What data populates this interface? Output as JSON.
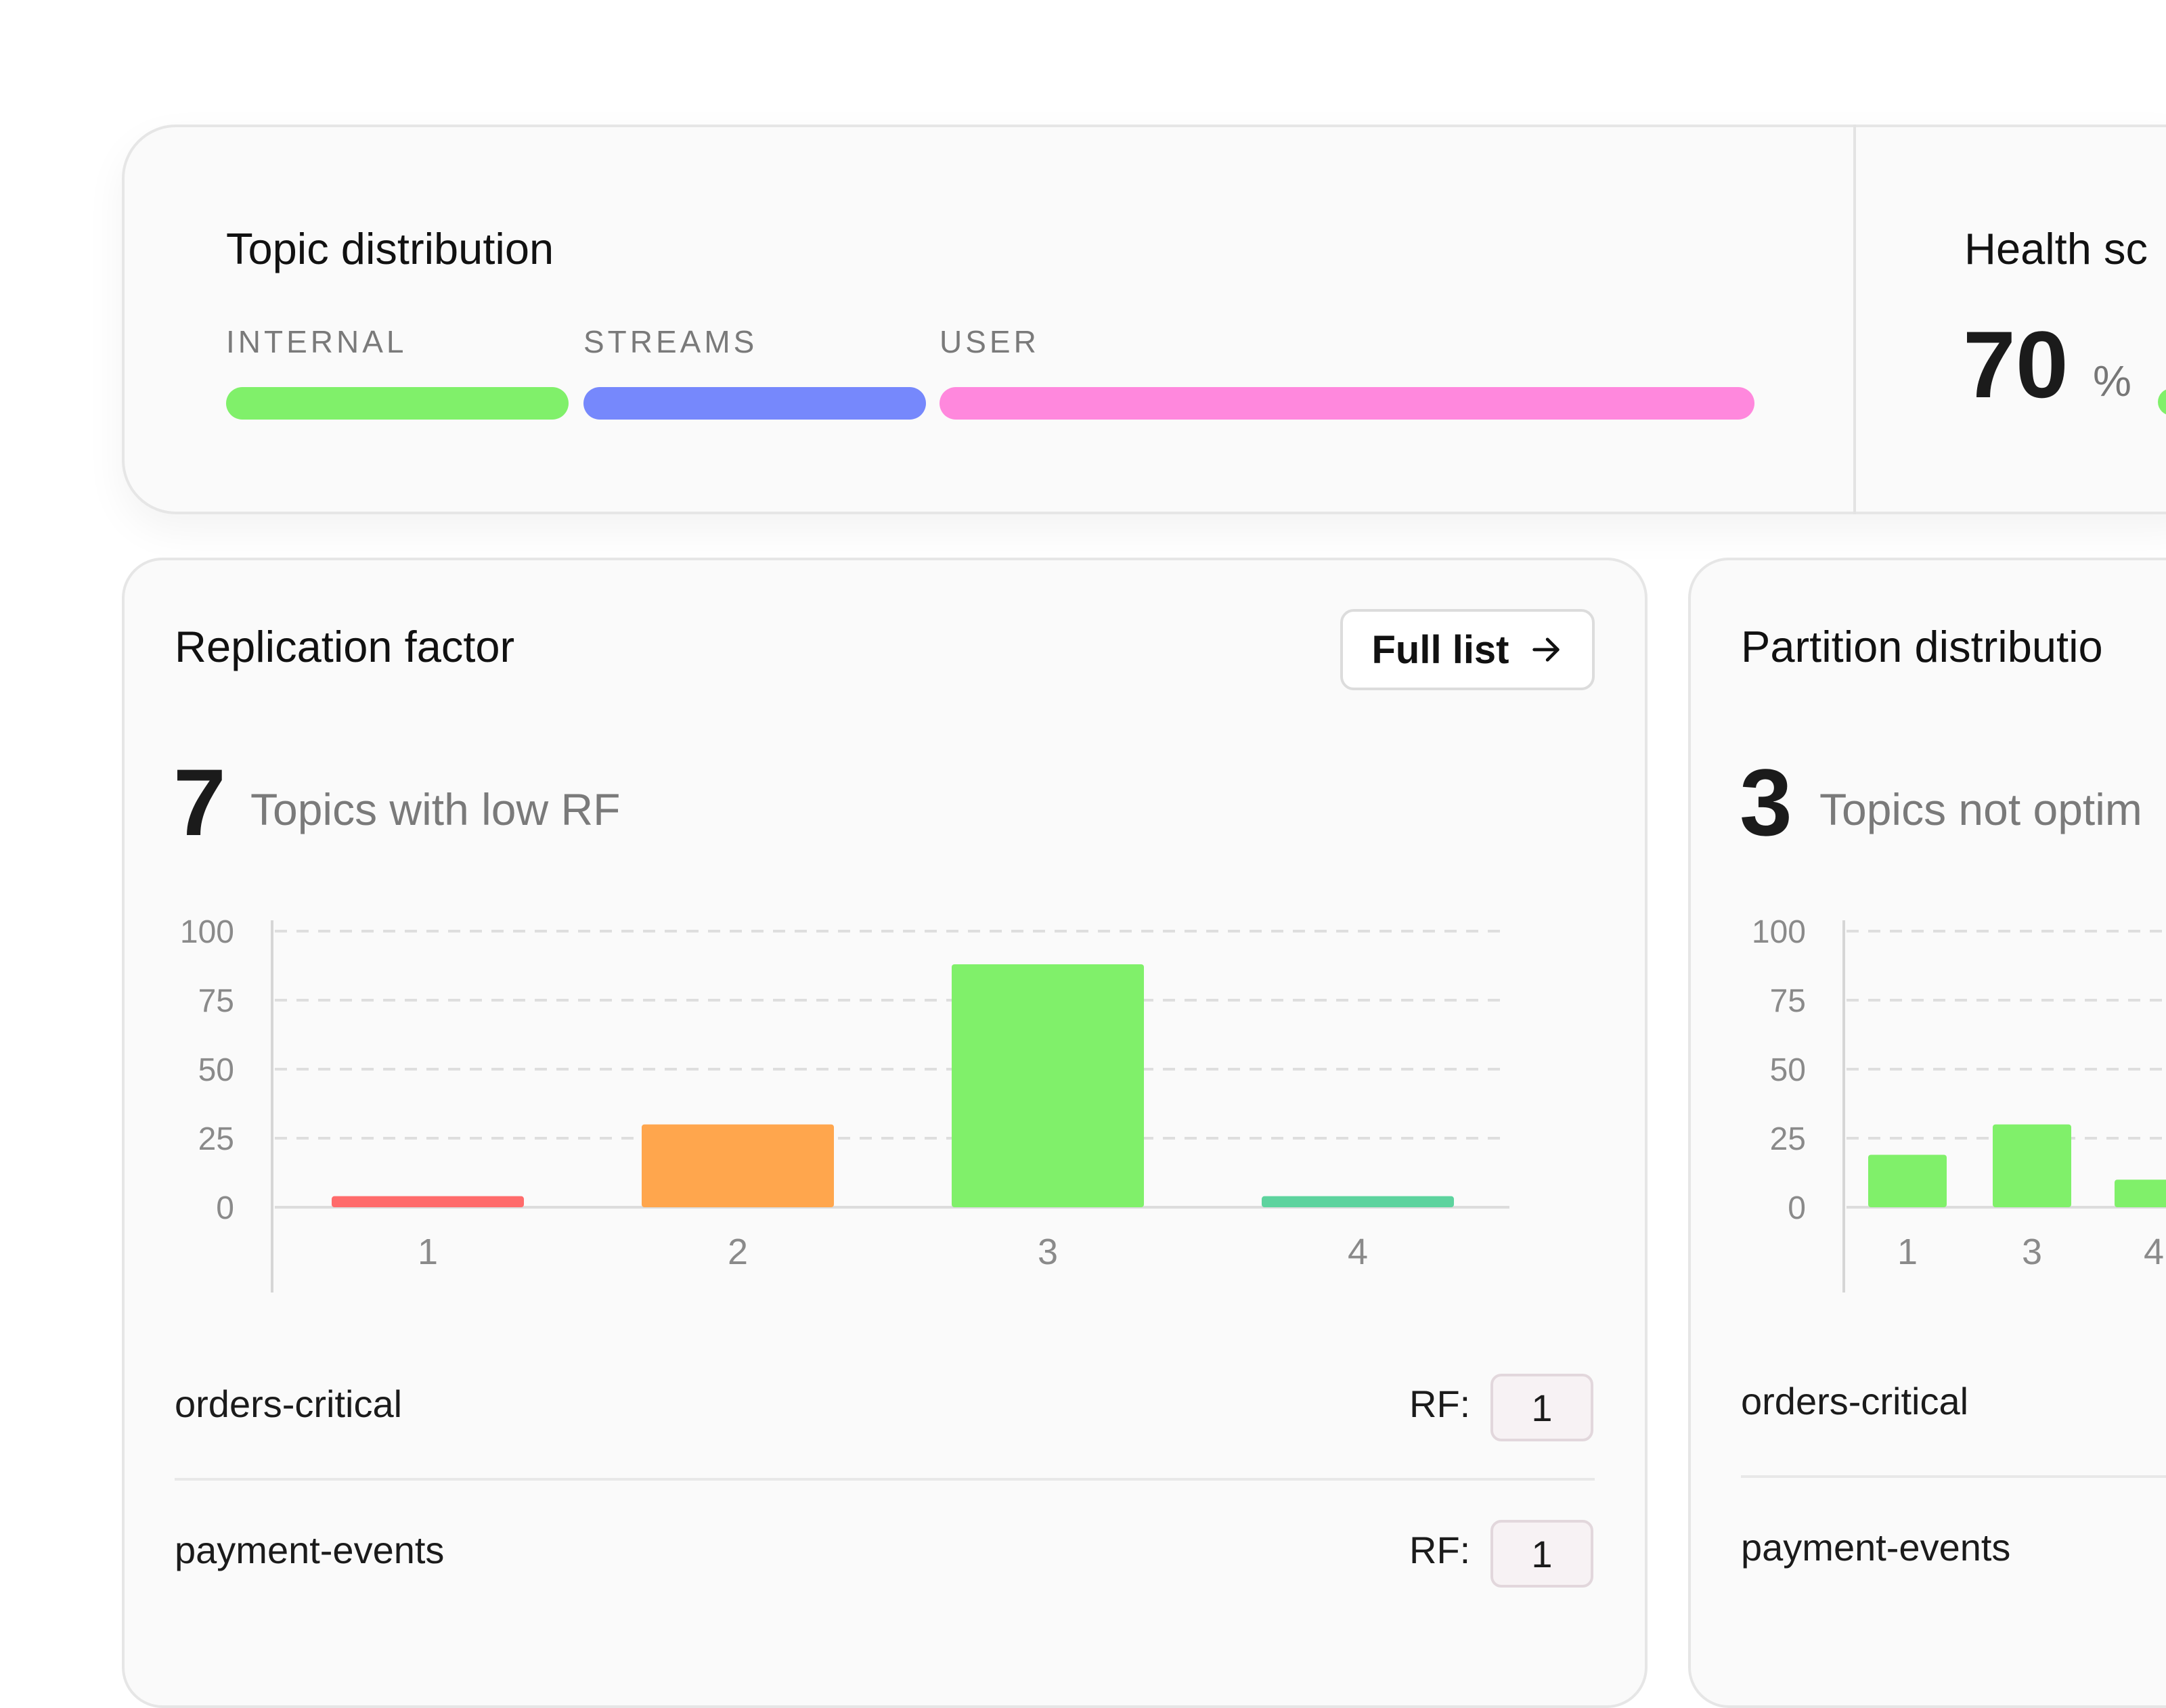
{
  "topic_distribution": {
    "title": "Topic distribution",
    "segments": [
      {
        "label": "INTERNAL",
        "color": "#80f06a"
      },
      {
        "label": "STREAMS",
        "color": "#7688fc"
      },
      {
        "label": "USER",
        "color": "#ff88dd"
      }
    ]
  },
  "health": {
    "title": "Health sc",
    "value": "70",
    "unit": "%"
  },
  "replication": {
    "title": "Replication factor",
    "button_label": "Full list",
    "count": "7",
    "count_label": "Topics with low RF",
    "rows": [
      {
        "name": "orders-critical",
        "rf_label": "RF:",
        "rf_value": "1"
      },
      {
        "name": "payment-events",
        "rf_label": "RF:",
        "rf_value": "1"
      }
    ]
  },
  "partition": {
    "title": "Partition distributio",
    "count": "3",
    "count_label": "Topics not optim",
    "rows": [
      {
        "name": "orders-critical"
      },
      {
        "name": "payment-events"
      }
    ]
  },
  "chart_data": [
    {
      "type": "bar",
      "categories": [
        "1",
        "2",
        "3",
        "4"
      ],
      "values": [
        4,
        30,
        88,
        4
      ],
      "colors": [
        "#ff6b6b",
        "#ffa64d",
        "#80f06a",
        "#5dd39e"
      ],
      "yticks": [
        "0",
        "25",
        "50",
        "75",
        "100"
      ],
      "ylim": [
        0,
        100
      ],
      "grid": true
    },
    {
      "type": "bar",
      "categories": [
        "1",
        "3",
        "4"
      ],
      "values": [
        19,
        30,
        10
      ],
      "colors": [
        "#80f06a",
        "#80f06a",
        "#80f06a"
      ],
      "yticks": [
        "0",
        "25",
        "50",
        "75",
        "100"
      ],
      "ylim": [
        0,
        100
      ],
      "grid": true
    }
  ]
}
